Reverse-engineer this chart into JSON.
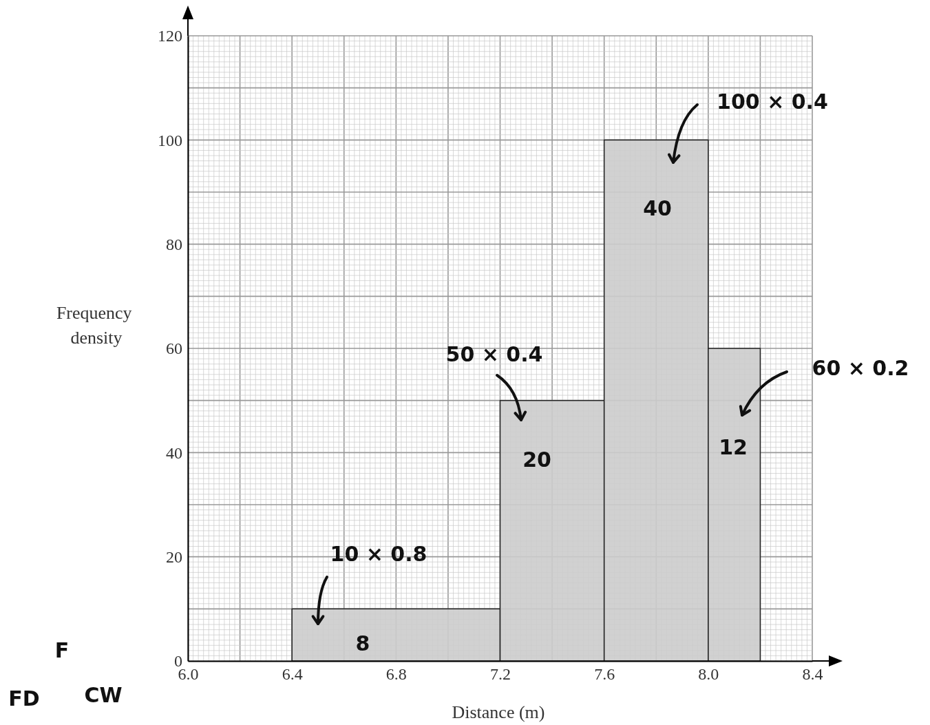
{
  "chart_data": {
    "type": "histogram",
    "xlabel": "Distance (m)",
    "ylabel": "Frequency density",
    "bins": [
      6.4,
      7.2,
      7.6,
      8.0,
      8.2
    ],
    "values": [
      10,
      50,
      100,
      60
    ],
    "color": "#cccccc",
    "xlim": [
      6.0,
      8.4
    ],
    "xticks": [
      {
        "value": 6.0,
        "label": "6.0"
      },
      6.4,
      6.8,
      7.2,
      7.6,
      {
        "value": 8.0,
        "label": "8.0"
      },
      8.4
    ],
    "ylim": [
      0,
      120
    ],
    "yticks": [
      0,
      20,
      40,
      60,
      80,
      100,
      120
    ],
    "grid": true,
    "annotations": [
      "10 × 0.8",
      "8",
      "50 × 0.4",
      "20",
      "100 × 0.4",
      "40",
      "60 × 0.2",
      "12",
      "F",
      "FD",
      "CW"
    ]
  }
}
